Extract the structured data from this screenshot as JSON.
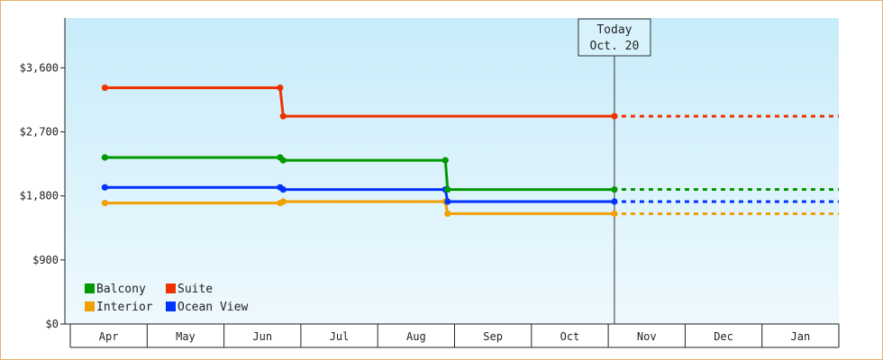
{
  "chart_data": {
    "type": "line",
    "title": "",
    "xlabel": "",
    "ylabel": "",
    "categories": [
      "Apr",
      "May",
      "Jun",
      "Jul",
      "Aug",
      "Sep",
      "Oct",
      "Nov",
      "Dec",
      "Jan"
    ],
    "ylim": [
      0,
      4300
    ],
    "yticks": [
      {
        "value": 0,
        "label": "$0"
      },
      {
        "value": 900,
        "label": "$900"
      },
      {
        "value": 1800,
        "label": "$1,800"
      },
      {
        "value": 2700,
        "label": "$2,700"
      },
      {
        "value": 3600,
        "label": "$3,600"
      }
    ],
    "today": {
      "label": "Today",
      "date": "Oct. 20",
      "x": 6.58
    },
    "grid": false,
    "legend_position": "bottom-left",
    "series": [
      {
        "name": "Balcony",
        "color": "#009900",
        "points": [
          [
            -0.05,
            2340
          ],
          [
            2.23,
            2340
          ],
          [
            2.27,
            2300
          ],
          [
            4.38,
            2300
          ],
          [
            4.41,
            1890
          ],
          [
            6.58,
            1890
          ]
        ]
      },
      {
        "name": "Suite",
        "color": "#ee3300",
        "points": [
          [
            -0.05,
            3320
          ],
          [
            2.23,
            3320
          ],
          [
            2.27,
            2920
          ],
          [
            6.58,
            2920
          ]
        ]
      },
      {
        "name": "Interior",
        "color": "#f0a000",
        "points": [
          [
            -0.05,
            1700
          ],
          [
            2.23,
            1700
          ],
          [
            2.27,
            1720
          ],
          [
            4.38,
            1720
          ],
          [
            4.41,
            1550
          ],
          [
            6.58,
            1550
          ]
        ]
      },
      {
        "name": "Ocean View",
        "color": "#0033ff",
        "points": [
          [
            -0.05,
            1920
          ],
          [
            2.23,
            1920
          ],
          [
            2.27,
            1890
          ],
          [
            4.38,
            1890
          ],
          [
            4.41,
            1720
          ],
          [
            6.58,
            1720
          ]
        ]
      }
    ],
    "legend_order": [
      "Balcony",
      "Suite",
      "Interior",
      "Ocean View"
    ]
  }
}
